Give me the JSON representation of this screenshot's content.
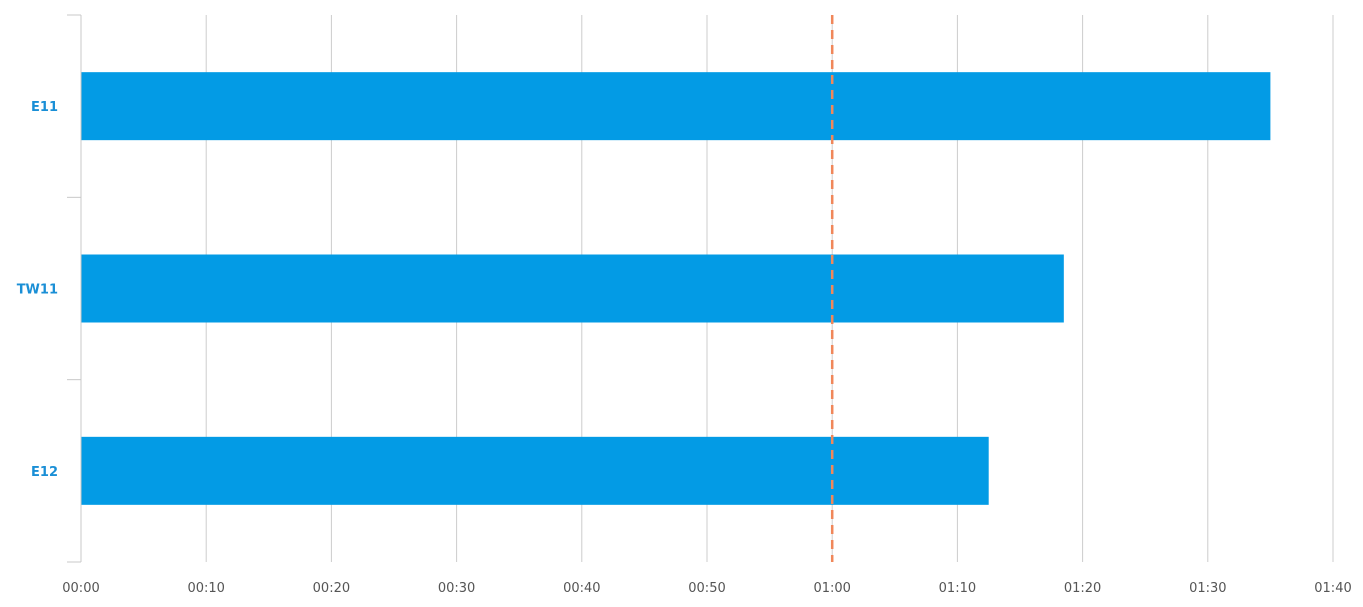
{
  "chart_data": {
    "type": "bar",
    "orientation": "horizontal",
    "title": "",
    "xlabel": "",
    "ylabel": "",
    "categories": [
      "E11",
      "TW11",
      "E12"
    ],
    "values": [
      "01:35",
      "01:18",
      "01:12"
    ],
    "value_seconds": [
      95,
      78.5,
      72.5
    ],
    "x_ticks": [
      "00:00",
      "00:10",
      "00:20",
      "00:30",
      "00:40",
      "00:50",
      "01:00",
      "01:10",
      "01:20",
      "01:30",
      "01:40"
    ],
    "xlim_seconds": [
      0,
      100
    ],
    "reference_line": {
      "value": "01:00",
      "value_seconds": 60,
      "style": "dashed"
    },
    "grid": "vertical",
    "legend": "none",
    "colors": {
      "bar": "#039be5",
      "reference_line": "#f0875a",
      "category_label": "#1a8fd6",
      "grid": "#cccccc",
      "axis": "#c8c8c8",
      "tick_label": "#555555"
    }
  }
}
